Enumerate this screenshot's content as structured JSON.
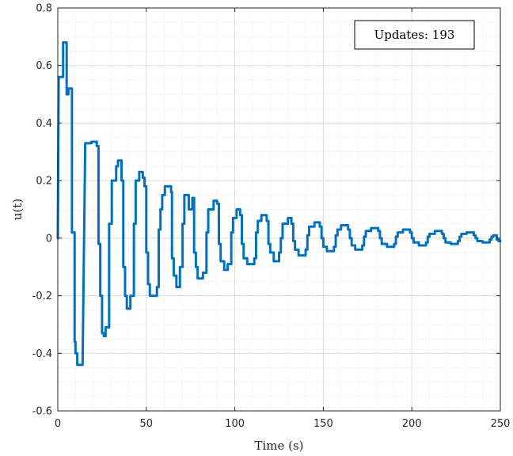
{
  "chart_data": {
    "type": "line",
    "title": "",
    "xlabel": "Time (s)",
    "ylabel": "u(t)",
    "xlim": [
      0,
      250
    ],
    "ylim": [
      -0.6,
      0.8
    ],
    "xticks": [
      0,
      50,
      100,
      150,
      200,
      250
    ],
    "xtick_labels": [
      "0",
      "50",
      "100",
      "150",
      "200",
      "250"
    ],
    "yticks": [
      -0.6,
      -0.4,
      -0.2,
      0,
      0.2,
      0.4,
      0.6,
      0.8
    ],
    "ytick_labels": [
      "-0.6",
      "-0.4",
      "-0.2",
      "0",
      "0.2",
      "0.4",
      "0.6",
      "0.8"
    ],
    "grid": true,
    "minor_grid": true,
    "annotation": "Updates: 193",
    "series": [
      {
        "color": "#0072BD",
        "step": true,
        "points": [
          [
            0,
            0
          ],
          [
            0.5,
            0.56
          ],
          [
            3,
            0.56
          ],
          [
            3,
            0.68
          ],
          [
            5,
            0.68
          ],
          [
            5,
            0.5
          ],
          [
            6,
            0.5
          ],
          [
            6,
            0.52
          ],
          [
            8,
            0.52
          ],
          [
            8,
            0.02
          ],
          [
            9.5,
            0.02
          ],
          [
            9.5,
            -0.36
          ],
          [
            10,
            -0.36
          ],
          [
            10,
            -0.4
          ],
          [
            11,
            -0.4
          ],
          [
            11,
            -0.44
          ],
          [
            14,
            -0.44
          ],
          [
            15.5,
            0.33
          ],
          [
            19,
            0.33
          ],
          [
            19,
            0.335
          ],
          [
            22,
            0.335
          ],
          [
            22,
            0.32
          ],
          [
            23,
            0.32
          ],
          [
            23,
            -0.02
          ],
          [
            24,
            -0.02
          ],
          [
            24,
            -0.2
          ],
          [
            25,
            -0.2
          ],
          [
            25,
            -0.33
          ],
          [
            26,
            -0.33
          ],
          [
            26,
            -0.34
          ],
          [
            27,
            -0.34
          ],
          [
            27,
            -0.31
          ],
          [
            29,
            -0.31
          ],
          [
            29,
            0.05
          ],
          [
            30.5,
            0.05
          ],
          [
            30.5,
            0.2
          ],
          [
            33,
            0.2
          ],
          [
            33,
            0.25
          ],
          [
            34,
            0.25
          ],
          [
            34,
            0.27
          ],
          [
            36,
            0.27
          ],
          [
            36,
            0.2
          ],
          [
            37,
            0.2
          ],
          [
            37,
            -0.1
          ],
          [
            38,
            -0.1
          ],
          [
            38,
            -0.2
          ],
          [
            39,
            -0.2
          ],
          [
            39,
            -0.245
          ],
          [
            41,
            -0.245
          ],
          [
            41,
            -0.2
          ],
          [
            43,
            -0.2
          ],
          [
            43,
            0.05
          ],
          [
            44,
            0.05
          ],
          [
            44,
            0.2
          ],
          [
            46,
            0.2
          ],
          [
            46,
            0.23
          ],
          [
            48,
            0.23
          ],
          [
            48,
            0.21
          ],
          [
            49,
            0.21
          ],
          [
            49,
            0.18
          ],
          [
            50,
            0.18
          ],
          [
            50,
            -0.05
          ],
          [
            51,
            -0.05
          ],
          [
            51,
            -0.16
          ],
          [
            52,
            -0.16
          ],
          [
            52,
            -0.2
          ],
          [
            56,
            -0.2
          ],
          [
            56,
            -0.17
          ],
          [
            57,
            -0.17
          ],
          [
            57,
            0.03
          ],
          [
            58,
            0.03
          ],
          [
            58,
            0.1
          ],
          [
            59,
            0.1
          ],
          [
            59,
            0.15
          ],
          [
            60.5,
            0.15
          ],
          [
            60.5,
            0.18
          ],
          [
            64,
            0.18
          ],
          [
            64,
            0.16
          ],
          [
            64.5,
            0.16
          ],
          [
            64.5,
            -0.07
          ],
          [
            65.5,
            -0.07
          ],
          [
            65.5,
            -0.13
          ],
          [
            67,
            -0.13
          ],
          [
            67,
            -0.17
          ],
          [
            69,
            -0.17
          ],
          [
            69,
            -0.1
          ],
          [
            70.5,
            -0.1
          ],
          [
            70.5,
            0.05
          ],
          [
            71.5,
            0.05
          ],
          [
            71.5,
            0.15
          ],
          [
            74,
            0.15
          ],
          [
            74,
            0.1
          ],
          [
            76,
            0.1
          ],
          [
            76,
            0.14
          ],
          [
            77,
            0.14
          ],
          [
            77,
            -0.05
          ],
          [
            78,
            -0.05
          ],
          [
            78,
            -0.1
          ],
          [
            79,
            -0.1
          ],
          [
            79,
            -0.14
          ],
          [
            82,
            -0.14
          ],
          [
            82,
            -0.12
          ],
          [
            84,
            -0.12
          ],
          [
            84,
            0.02
          ],
          [
            85,
            0.02
          ],
          [
            85,
            0.1
          ],
          [
            88,
            0.1
          ],
          [
            88,
            0.13
          ],
          [
            90,
            0.13
          ],
          [
            90,
            0.12
          ],
          [
            91,
            0.12
          ],
          [
            91,
            -0.02
          ],
          [
            92,
            -0.02
          ],
          [
            92,
            -0.08
          ],
          [
            94,
            -0.08
          ],
          [
            94,
            -0.11
          ],
          [
            96,
            -0.11
          ],
          [
            96,
            -0.09
          ],
          [
            98,
            -0.09
          ],
          [
            98,
            0.02
          ],
          [
            99,
            0.02
          ],
          [
            99,
            0.07
          ],
          [
            101,
            0.07
          ],
          [
            101,
            0.1
          ],
          [
            103,
            0.1
          ],
          [
            103,
            0.08
          ],
          [
            104,
            0.08
          ],
          [
            104,
            -0.02
          ],
          [
            105,
            -0.02
          ],
          [
            105,
            -0.07
          ],
          [
            107,
            -0.07
          ],
          [
            107,
            -0.09
          ],
          [
            111,
            -0.09
          ],
          [
            111,
            -0.07
          ],
          [
            112,
            -0.07
          ],
          [
            112,
            0.02
          ],
          [
            113,
            0.02
          ],
          [
            113,
            0.06
          ],
          [
            115,
            0.06
          ],
          [
            115,
            0.08
          ],
          [
            118,
            0.08
          ],
          [
            118,
            0.06
          ],
          [
            119,
            0.06
          ],
          [
            119,
            -0.02
          ],
          [
            120,
            -0.02
          ],
          [
            120,
            -0.05
          ],
          [
            122,
            -0.05
          ],
          [
            122,
            -0.08
          ],
          [
            125,
            -0.08
          ],
          [
            125,
            -0.05
          ],
          [
            126,
            -0.05
          ],
          [
            126,
            0.0
          ],
          [
            127,
            0.0
          ],
          [
            127,
            0.05
          ],
          [
            130,
            0.05
          ],
          [
            130,
            0.07
          ],
          [
            132,
            0.07
          ],
          [
            132,
            0.05
          ],
          [
            133,
            0.05
          ],
          [
            133,
            -0.01
          ],
          [
            134,
            -0.01
          ],
          [
            134,
            -0.04
          ],
          [
            136,
            -0.04
          ],
          [
            136,
            -0.06
          ],
          [
            140,
            -0.06
          ],
          [
            140,
            -0.04
          ],
          [
            141,
            -0.04
          ],
          [
            141,
            0.01
          ],
          [
            142,
            0.01
          ],
          [
            142,
            0.04
          ],
          [
            145,
            0.04
          ],
          [
            145,
            0.055
          ],
          [
            148,
            0.055
          ],
          [
            148,
            0.04
          ],
          [
            149,
            0.04
          ],
          [
            149,
            0.0
          ],
          [
            150,
            0.0
          ],
          [
            150,
            -0.03
          ],
          [
            152,
            -0.03
          ],
          [
            152,
            -0.045
          ],
          [
            156,
            -0.045
          ],
          [
            156,
            -0.03
          ],
          [
            157,
            -0.03
          ],
          [
            157,
            0.01
          ],
          [
            158,
            0.01
          ],
          [
            158,
            0.03
          ],
          [
            160,
            0.03
          ],
          [
            160,
            0.045
          ],
          [
            164,
            0.045
          ],
          [
            164,
            0.03
          ],
          [
            165,
            0.03
          ],
          [
            165,
            0.0
          ],
          [
            166,
            0.0
          ],
          [
            166,
            -0.025
          ],
          [
            168,
            -0.025
          ],
          [
            168,
            -0.04
          ],
          [
            172,
            -0.04
          ],
          [
            172,
            -0.025
          ],
          [
            173,
            -0.025
          ],
          [
            173,
            0.005
          ],
          [
            174,
            0.005
          ],
          [
            174,
            0.025
          ],
          [
            177,
            0.025
          ],
          [
            177,
            0.035
          ],
          [
            181,
            0.035
          ],
          [
            181,
            0.025
          ],
          [
            182,
            0.025
          ],
          [
            182,
            0.0
          ],
          [
            183,
            0.0
          ],
          [
            183,
            -0.02
          ],
          [
            186,
            -0.02
          ],
          [
            186,
            -0.03
          ],
          [
            190,
            -0.03
          ],
          [
            190,
            -0.02
          ],
          [
            191,
            -0.02
          ],
          [
            191,
            0.005
          ],
          [
            192,
            0.005
          ],
          [
            192,
            0.02
          ],
          [
            195,
            0.02
          ],
          [
            195,
            0.03
          ],
          [
            199,
            0.03
          ],
          [
            199,
            0.02
          ],
          [
            200,
            0.02
          ],
          [
            200,
            0.0
          ],
          [
            201,
            0.0
          ],
          [
            201,
            -0.015
          ],
          [
            204,
            -0.015
          ],
          [
            204,
            -0.025
          ],
          [
            208,
            -0.025
          ],
          [
            208,
            -0.015
          ],
          [
            209,
            -0.015
          ],
          [
            209,
            0.005
          ],
          [
            210,
            0.005
          ],
          [
            210,
            0.015
          ],
          [
            213,
            0.015
          ],
          [
            213,
            0.025
          ],
          [
            217,
            0.025
          ],
          [
            217,
            0.015
          ],
          [
            218,
            0.015
          ],
          [
            218,
            0.0
          ],
          [
            219,
            0.0
          ],
          [
            219,
            -0.015
          ],
          [
            222,
            -0.015
          ],
          [
            222,
            -0.02
          ],
          [
            226,
            -0.02
          ],
          [
            226,
            -0.01
          ],
          [
            227,
            -0.01
          ],
          [
            227,
            0.005
          ],
          [
            228,
            0.005
          ],
          [
            228,
            0.015
          ],
          [
            231,
            0.015
          ],
          [
            231,
            0.02
          ],
          [
            235,
            0.02
          ],
          [
            235,
            0.01
          ],
          [
            236,
            0.01
          ],
          [
            236,
            0.0
          ],
          [
            237,
            0.0
          ],
          [
            237,
            -0.01
          ],
          [
            240,
            -0.01
          ],
          [
            240,
            -0.015
          ],
          [
            244,
            -0.015
          ],
          [
            244,
            -0.005
          ],
          [
            245,
            -0.005
          ],
          [
            245,
            0.005
          ],
          [
            246,
            0.005
          ],
          [
            246,
            0.01
          ],
          [
            248,
            0.01
          ],
          [
            248,
            -0.005
          ],
          [
            249,
            -0.005
          ],
          [
            249,
            -0.01
          ],
          [
            250,
            -0.01
          ]
        ]
      }
    ]
  }
}
